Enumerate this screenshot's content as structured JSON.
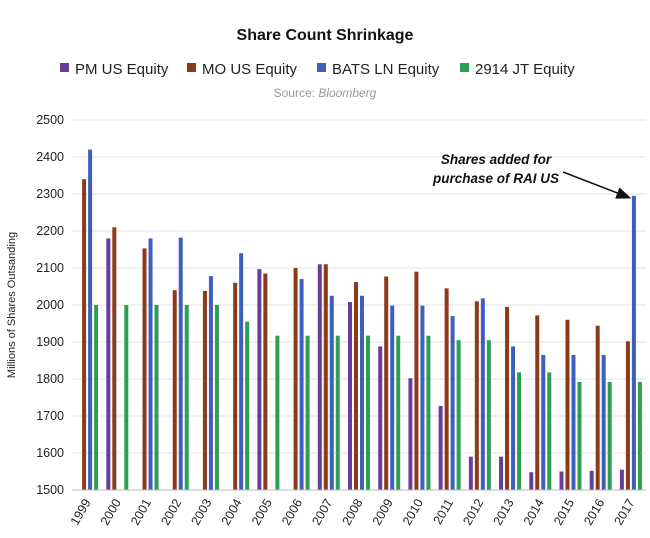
{
  "chart_data": {
    "type": "bar",
    "title": "Share Count Shrinkage",
    "source_label": "Source: ",
    "source_name": "Bloomberg",
    "ylabel": "Millions of Shares Outsanding",
    "xlabel": "",
    "ylim": [
      1500,
      2500
    ],
    "yticks": [
      1500,
      1600,
      1700,
      1800,
      1900,
      2000,
      2100,
      2200,
      2300,
      2400,
      2500
    ],
    "grid": true,
    "legend_position": "top",
    "categories": [
      "1999",
      "2000",
      "2001",
      "2002",
      "2003",
      "2004",
      "2005",
      "2006",
      "2007",
      "2008",
      "2009",
      "2010",
      "2011",
      "2012",
      "2013",
      "2014",
      "2015",
      "2016",
      "2017"
    ],
    "series": [
      {
        "name": "PM US Equity",
        "color": "#6a3d9a",
        "values": [
          null,
          2180,
          null,
          null,
          null,
          null,
          2097,
          null,
          2110,
          2008,
          1888,
          1802,
          1727,
          1590,
          1590,
          1548,
          1550,
          1552,
          1555
        ]
      },
      {
        "name": "MO US Equity",
        "color": "#8b3a1a",
        "values": [
          2340,
          2210,
          2153,
          2040,
          2038,
          2060,
          2085,
          2100,
          2110,
          2062,
          2077,
          2090,
          2045,
          2010,
          1995,
          1972,
          1960,
          1944,
          1902
        ]
      },
      {
        "name": "BATS LN Equity",
        "color": "#3c5fc0",
        "values": [
          2420,
          null,
          2180,
          2182,
          2078,
          2140,
          null,
          2070,
          2025,
          2025,
          1998,
          1998,
          1970,
          2018,
          1888,
          1865,
          1865,
          1865,
          2295
        ]
      },
      {
        "name": "2914 JT Equity",
        "color": "#2e9e52",
        "values": [
          2000,
          2000,
          2000,
          2000,
          2000,
          1955,
          1917,
          1917,
          1917,
          1917,
          1917,
          1917,
          1905,
          1905,
          1818,
          1818,
          1792,
          1792,
          1792
        ]
      }
    ],
    "annotation": {
      "lines": [
        "Shares added for",
        "purchase of RAI US"
      ],
      "target_category": "2017",
      "target_series": "BATS LN Equity"
    }
  }
}
